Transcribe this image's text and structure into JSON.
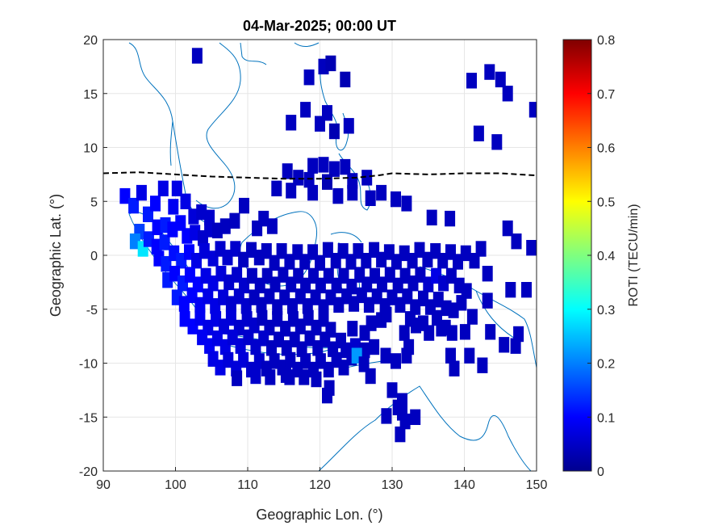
{
  "chart_data": {
    "type": "heatmap",
    "title": "04-Mar-2025; 00:00 UT",
    "xlabel": "Geographic Lon. (°)",
    "ylabel": "Geographic Lat. (°)",
    "xlim": [
      90,
      150
    ],
    "ylim": [
      -20,
      20
    ],
    "xticks": [
      "90",
      "100",
      "110",
      "120",
      "130",
      "140",
      "150"
    ],
    "yticks": [
      "-20",
      "-15",
      "-10",
      "-5",
      "0",
      "5",
      "10",
      "15",
      "20"
    ],
    "grid": true,
    "colorbar": {
      "label": "ROTI (TECU/min)",
      "range": [
        0,
        0.8
      ],
      "ticks": [
        "0",
        "0.1",
        "0.2",
        "0.3",
        "0.4",
        "0.5",
        "0.6",
        "0.7",
        "0.8"
      ],
      "colormap": "jet"
    },
    "magnetic_equator": {
      "style": "dashed",
      "color": "#000000",
      "points": [
        [
          90,
          7.6
        ],
        [
          95,
          7.7
        ],
        [
          100,
          7.5
        ],
        [
          105,
          7.3
        ],
        [
          110,
          7.2
        ],
        [
          115,
          7.1
        ],
        [
          120,
          7.1
        ],
        [
          125,
          7.2
        ],
        [
          128,
          7.4
        ],
        [
          130,
          7.6
        ],
        [
          135,
          7.5
        ],
        [
          140,
          7.6
        ],
        [
          145,
          7.6
        ],
        [
          150,
          7.4
        ]
      ]
    },
    "cells": [
      [
        103,
        18.5,
        0.05
      ],
      [
        120.5,
        17.5,
        0.05
      ],
      [
        121.5,
        17.8,
        0.04
      ],
      [
        118.5,
        16.5,
        0.05
      ],
      [
        123.5,
        16.3,
        0.04
      ],
      [
        141,
        16.2,
        0.05
      ],
      [
        143.5,
        17,
        0.05
      ],
      [
        145,
        16.3,
        0.05
      ],
      [
        146,
        15,
        0.05
      ],
      [
        118,
        13.5,
        0.05
      ],
      [
        121,
        13.2,
        0.05
      ],
      [
        116,
        12.3,
        0.05
      ],
      [
        120,
        12.2,
        0.05
      ],
      [
        122,
        11.5,
        0.04
      ],
      [
        124,
        12,
        0.05
      ],
      [
        142,
        11.3,
        0.05
      ],
      [
        144.5,
        10.5,
        0.05
      ],
      [
        149.7,
        13.5,
        0.05
      ],
      [
        119,
        8.3,
        0.05
      ],
      [
        120.5,
        8.4,
        0.05
      ],
      [
        122,
        8,
        0.05
      ],
      [
        123.5,
        8.2,
        0.05
      ],
      [
        115.5,
        7.8,
        0.05
      ],
      [
        117,
        7.2,
        0.05
      ],
      [
        118.5,
        7,
        0.05
      ],
      [
        121,
        6.8,
        0.04
      ],
      [
        124.5,
        6.9,
        0.05
      ],
      [
        126.5,
        7.2,
        0.05
      ],
      [
        114,
        6.2,
        0.05
      ],
      [
        116,
        6,
        0.05
      ],
      [
        119,
        5.8,
        0.05
      ],
      [
        122.5,
        5.5,
        0.05
      ],
      [
        124.5,
        5.8,
        0.05
      ],
      [
        127,
        5.3,
        0.05
      ],
      [
        128.5,
        5.8,
        0.05
      ],
      [
        130.5,
        5.2,
        0.05
      ],
      [
        132,
        4.8,
        0.05
      ],
      [
        135.5,
        3.5,
        0.05
      ],
      [
        138,
        3.4,
        0.05
      ],
      [
        146,
        2.5,
        0.05
      ],
      [
        93,
        5.5,
        0.1
      ],
      [
        94.2,
        4.6,
        0.12
      ],
      [
        95.3,
        5.8,
        0.08
      ],
      [
        96.2,
        3.8,
        0.12
      ],
      [
        97.2,
        4.8,
        0.1
      ],
      [
        98.3,
        6.2,
        0.08
      ],
      [
        95,
        2.2,
        0.15
      ],
      [
        94.4,
        1.3,
        0.2
      ],
      [
        95.5,
        0.6,
        0.28
      ],
      [
        96.3,
        1.5,
        0.12
      ],
      [
        97.5,
        2.6,
        0.1
      ],
      [
        98.6,
        2.8,
        0.12
      ],
      [
        99.7,
        4.5,
        0.09
      ],
      [
        100.2,
        6.2,
        0.08
      ],
      [
        101.4,
        5,
        0.08
      ],
      [
        102.5,
        3.6,
        0.07
      ],
      [
        103.6,
        4,
        0.06
      ],
      [
        104.7,
        3.5,
        0.06
      ],
      [
        97.4,
        0.8,
        0.1
      ],
      [
        98.5,
        1.2,
        0.12
      ],
      [
        99.6,
        2.4,
        0.1
      ],
      [
        100.7,
        3,
        0.1
      ],
      [
        101.6,
        1.8,
        0.1
      ],
      [
        102.7,
        2.1,
        0.08
      ],
      [
        103.8,
        1.6,
        0.06
      ],
      [
        104.7,
        2.4,
        0.06
      ],
      [
        105.8,
        2.3,
        0.05
      ],
      [
        106.9,
        2.7,
        0.05
      ],
      [
        108.2,
        3.2,
        0.05
      ],
      [
        109.5,
        4.6,
        0.05
      ],
      [
        111.3,
        2.5,
        0.05
      ],
      [
        112.2,
        3.4,
        0.05
      ],
      [
        113.4,
        2.7,
        0.05
      ],
      [
        97.7,
        -0.3,
        0.1
      ],
      [
        98.7,
        -0.8,
        0.12
      ],
      [
        99.8,
        0.2,
        0.11
      ],
      [
        100.8,
        -0.5,
        0.12
      ],
      [
        101.9,
        0.3,
        0.1
      ],
      [
        102.9,
        -0.5,
        0.08
      ],
      [
        104,
        0.4,
        0.07
      ],
      [
        105.2,
        -0.3,
        0.07
      ],
      [
        106.2,
        0.6,
        0.06
      ],
      [
        107.2,
        -0.2,
        0.06
      ],
      [
        108.3,
        0.6,
        0.06
      ],
      [
        109.4,
        -0.4,
        0.05
      ],
      [
        110.5,
        0.5,
        0.05
      ],
      [
        111.6,
        -0.2,
        0.05
      ],
      [
        112.6,
        0.4,
        0.05
      ],
      [
        113.7,
        -0.7,
        0.05
      ],
      [
        114.7,
        0.4,
        0.05
      ],
      [
        115.8,
        -0.6,
        0.05
      ],
      [
        116.9,
        0.3,
        0.05
      ],
      [
        117.9,
        -0.6,
        0.05
      ],
      [
        119,
        0.3,
        0.05
      ],
      [
        120,
        -0.7,
        0.05
      ],
      [
        121.1,
        0.5,
        0.05
      ],
      [
        122.2,
        -0.5,
        0.05
      ],
      [
        123.2,
        0.4,
        0.05
      ],
      [
        124.3,
        -0.6,
        0.05
      ],
      [
        125.3,
        0.4,
        0.05
      ],
      [
        126.4,
        -0.5,
        0.05
      ],
      [
        127.5,
        0.5,
        0.05
      ],
      [
        128.5,
        -0.4,
        0.05
      ],
      [
        129.6,
        0.3,
        0.05
      ],
      [
        130.6,
        -0.6,
        0.05
      ],
      [
        131.7,
        0.2,
        0.05
      ],
      [
        132.8,
        -0.5,
        0.05
      ],
      [
        133.8,
        0.5,
        0.05
      ],
      [
        134.9,
        -0.4,
        0.05
      ],
      [
        136,
        0.4,
        0.05
      ],
      [
        137,
        -0.5,
        0.05
      ],
      [
        138.1,
        0.3,
        0.05
      ],
      [
        139.1,
        -0.6,
        0.05
      ],
      [
        140.2,
        0.2,
        0.05
      ],
      [
        141.4,
        -0.5,
        0.05
      ],
      [
        142.3,
        0.6,
        0.05
      ],
      [
        147.2,
        1.3,
        0.05
      ],
      [
        149.3,
        0.7,
        0.05
      ],
      [
        143.2,
        -1.7,
        0.05
      ],
      [
        146.4,
        -3.2,
        0.05
      ],
      [
        148.6,
        -3.2,
        0.05
      ],
      [
        98.9,
        -2.3,
        0.12
      ],
      [
        99.9,
        -1.7,
        0.1
      ],
      [
        101,
        -2.6,
        0.12
      ],
      [
        102,
        -1.8,
        0.1
      ],
      [
        103.1,
        -2.7,
        0.1
      ],
      [
        104.2,
        -1.9,
        0.08
      ],
      [
        105.2,
        -2.6,
        0.08
      ],
      [
        106.3,
        -1.7,
        0.07
      ],
      [
        107.4,
        -2.5,
        0.06
      ],
      [
        108.5,
        -1.8,
        0.06
      ],
      [
        109.5,
        -2.8,
        0.06
      ],
      [
        110.6,
        -1.9,
        0.05
      ],
      [
        111.7,
        -2.8,
        0.05
      ],
      [
        112.7,
        -1.9,
        0.05
      ],
      [
        113.8,
        -2.7,
        0.05
      ],
      [
        114.9,
        -1.8,
        0.05
      ],
      [
        116,
        -2.7,
        0.05
      ],
      [
        117,
        -1.9,
        0.05
      ],
      [
        118,
        -2.8,
        0.05
      ],
      [
        119.1,
        -1.9,
        0.05
      ],
      [
        120.1,
        -2.8,
        0.05
      ],
      [
        121.2,
        -1.9,
        0.05
      ],
      [
        122.3,
        -2.8,
        0.05
      ],
      [
        123.3,
        -1.9,
        0.05
      ],
      [
        124.4,
        -2.9,
        0.05
      ],
      [
        125.5,
        -1.8,
        0.05
      ],
      [
        126.5,
        -2.7,
        0.05
      ],
      [
        127.6,
        -1.9,
        0.05
      ],
      [
        128.6,
        -2.7,
        0.05
      ],
      [
        129.7,
        -1.8,
        0.05
      ],
      [
        130.8,
        -2.8,
        0.05
      ],
      [
        131.8,
        -1.9,
        0.05
      ],
      [
        132.9,
        -2.6,
        0.05
      ],
      [
        133.9,
        -1.8,
        0.05
      ],
      [
        135,
        -2.7,
        0.06
      ],
      [
        136.1,
        -1.9,
        0.08
      ],
      [
        137.1,
        -2.6,
        0.06
      ],
      [
        138.2,
        -1.9,
        0.05
      ],
      [
        139.3,
        -2.8,
        0.05
      ],
      [
        140.3,
        -3.3,
        0.05
      ],
      [
        100.2,
        -3.9,
        0.12
      ],
      [
        101.2,
        -4.5,
        0.1
      ],
      [
        102.3,
        -3.7,
        0.1
      ],
      [
        103.4,
        -4.6,
        0.09
      ],
      [
        104.5,
        -3.8,
        0.08
      ],
      [
        105.5,
        -4.7,
        0.08
      ],
      [
        106.6,
        -3.9,
        0.07
      ],
      [
        107.7,
        -4.5,
        0.06
      ],
      [
        108.8,
        -3.8,
        0.06
      ],
      [
        109.8,
        -4.7,
        0.06
      ],
      [
        110.9,
        -3.9,
        0.05
      ],
      [
        111.9,
        -4.6,
        0.05
      ],
      [
        113,
        -3.8,
        0.05
      ],
      [
        114.1,
        -4.8,
        0.05
      ],
      [
        115.1,
        -3.9,
        0.05
      ],
      [
        116.2,
        -4.7,
        0.05
      ],
      [
        117.3,
        -3.8,
        0.05
      ],
      [
        118.3,
        -4.7,
        0.05
      ],
      [
        119.4,
        -3.9,
        0.05
      ],
      [
        120.5,
        -4.8,
        0.05
      ],
      [
        121.5,
        -3.9,
        0.05
      ],
      [
        122.6,
        -4.6,
        0.05
      ],
      [
        123.7,
        -3.8,
        0.05
      ],
      [
        124.7,
        -4.5,
        0.05
      ],
      [
        125.8,
        -3.7,
        0.05
      ],
      [
        126.8,
        -4.6,
        0.05
      ],
      [
        127.9,
        -3.8,
        0.05
      ],
      [
        129,
        -4.7,
        0.05
      ],
      [
        130,
        -3.9,
        0.05
      ],
      [
        131.1,
        -4.6,
        0.05
      ],
      [
        132.1,
        -3.8,
        0.05
      ],
      [
        133.2,
        -4.8,
        0.05
      ],
      [
        134.3,
        -4,
        0.05
      ],
      [
        135.3,
        -4.8,
        0.05
      ],
      [
        136.4,
        -4.1,
        0.05
      ],
      [
        137.5,
        -4.9,
        0.05
      ],
      [
        138.5,
        -5.1,
        0.05
      ],
      [
        139.6,
        -4.4,
        0.05
      ],
      [
        101.3,
        -5.9,
        0.1
      ],
      [
        102.4,
        -6.6,
        0.1
      ],
      [
        103.4,
        -5.8,
        0.09
      ],
      [
        104.5,
        -6.7,
        0.08
      ],
      [
        105.6,
        -5.9,
        0.08
      ],
      [
        106.7,
        -6.6,
        0.07
      ],
      [
        107.7,
        -5.8,
        0.07
      ],
      [
        108.8,
        -6.7,
        0.06
      ],
      [
        109.9,
        -5.9,
        0.06
      ],
      [
        110.9,
        -6.5,
        0.06
      ],
      [
        112,
        -5.8,
        0.05
      ],
      [
        113,
        -6.7,
        0.05
      ],
      [
        114.1,
        -5.9,
        0.05
      ],
      [
        115.2,
        -6.8,
        0.05
      ],
      [
        116.3,
        -5.9,
        0.05
      ],
      [
        117.3,
        -6.6,
        0.05
      ],
      [
        118.4,
        -5.8,
        0.05
      ],
      [
        119.5,
        -6.7,
        0.05
      ],
      [
        120.5,
        -5.9,
        0.05
      ],
      [
        121.5,
        -6.9,
        0.05
      ],
      [
        124.5,
        -6.8,
        0.05
      ],
      [
        126.2,
        -7.2,
        0.05
      ],
      [
        127.1,
        -6.3,
        0.05
      ],
      [
        128.5,
        -6,
        0.05
      ],
      [
        129.2,
        -5.5,
        0.05
      ],
      [
        132.5,
        -5.9,
        0.05
      ],
      [
        134.3,
        -6.3,
        0.05
      ],
      [
        136.2,
        -5.8,
        0.05
      ],
      [
        137.4,
        -6.7,
        0.05
      ],
      [
        103.7,
        -7.6,
        0.09
      ],
      [
        104.7,
        -8.4,
        0.09
      ],
      [
        105.8,
        -7.7,
        0.08
      ],
      [
        106.9,
        -8.5,
        0.08
      ],
      [
        107.9,
        -7.6,
        0.07
      ],
      [
        109,
        -8.4,
        0.07
      ],
      [
        110.1,
        -7.6,
        0.06
      ],
      [
        111.1,
        -8.5,
        0.06
      ],
      [
        112.2,
        -7.7,
        0.06
      ],
      [
        113.3,
        -8.6,
        0.05
      ],
      [
        114.3,
        -7.8,
        0.05
      ],
      [
        115.4,
        -8.6,
        0.05
      ],
      [
        116.5,
        -7.8,
        0.05
      ],
      [
        117.5,
        -8.7,
        0.05
      ],
      [
        118.6,
        -7.7,
        0.05
      ],
      [
        119.7,
        -8.6,
        0.05
      ],
      [
        120.7,
        -7.8,
        0.05
      ],
      [
        121.8,
        -8.7,
        0.05
      ],
      [
        122.9,
        -7.9,
        0.05
      ],
      [
        123.6,
        -8.8,
        0.05
      ],
      [
        124.9,
        -8.4,
        0.06
      ],
      [
        126.2,
        -8.8,
        0.05
      ],
      [
        131.7,
        -7.2,
        0.05
      ],
      [
        133.3,
        -6.5,
        0.05
      ],
      [
        135.1,
        -7.2,
        0.05
      ],
      [
        136.8,
        -6.8,
        0.05
      ],
      [
        138.3,
        -7.2,
        0.05
      ],
      [
        140.1,
        -7.1,
        0.05
      ],
      [
        143.6,
        -7.1,
        0.05
      ],
      [
        147.5,
        -7.3,
        0.05
      ],
      [
        105.2,
        -9.6,
        0.08
      ],
      [
        106.2,
        -10.4,
        0.08
      ],
      [
        107.3,
        -9.7,
        0.07
      ],
      [
        108.4,
        -10.5,
        0.07
      ],
      [
        109.4,
        -9.7,
        0.07
      ],
      [
        110.5,
        -10.6,
        0.06
      ],
      [
        111.6,
        -9.8,
        0.06
      ],
      [
        112.6,
        -10.5,
        0.05
      ],
      [
        113.7,
        -9.8,
        0.05
      ],
      [
        114.8,
        -10.4,
        0.05
      ],
      [
        115.9,
        -9.7,
        0.05
      ],
      [
        116.9,
        -10.6,
        0.05
      ],
      [
        118,
        -9.8,
        0.05
      ],
      [
        119.1,
        -10.6,
        0.05
      ],
      [
        120.1,
        -9.8,
        0.05
      ],
      [
        121.2,
        -10.6,
        0.05
      ],
      [
        122.3,
        -9.7,
        0.05
      ],
      [
        123.3,
        -10.4,
        0.05
      ],
      [
        124.4,
        -9.5,
        0.05
      ],
      [
        125.1,
        -9.3,
        0.22
      ],
      [
        126.1,
        -10.1,
        0.05
      ],
      [
        117.8,
        -11.3,
        0.05
      ],
      [
        119.5,
        -11.5,
        0.05
      ],
      [
        121.3,
        -12.3,
        0.05
      ],
      [
        121,
        -13,
        0.05
      ],
      [
        127.5,
        -8.5,
        0.05
      ],
      [
        129.1,
        -9.3,
        0.05
      ],
      [
        130.5,
        -9.8,
        0.05
      ],
      [
        132.3,
        -8.5,
        0.05
      ],
      [
        132,
        -9.3,
        0.05
      ],
      [
        138.1,
        -9.3,
        0.05
      ],
      [
        142.5,
        -10.2,
        0.05
      ],
      [
        108.5,
        -11.4,
        0.05
      ],
      [
        111.1,
        -11.2,
        0.06
      ],
      [
        113.1,
        -11.3,
        0.05
      ],
      [
        115.3,
        -11.1,
        0.05
      ],
      [
        115.8,
        -11.3,
        0.05
      ],
      [
        127,
        -11.2,
        0.05
      ],
      [
        130,
        -12.5,
        0.05
      ],
      [
        131.4,
        -13.5,
        0.05
      ],
      [
        130.8,
        -14.1,
        0.05
      ],
      [
        129.2,
        -14.9,
        0.05
      ],
      [
        131.4,
        -14.6,
        0.05
      ],
      [
        133.2,
        -15,
        0.05
      ],
      [
        131.8,
        -15.4,
        0.05
      ],
      [
        131.1,
        -16.6,
        0.05
      ],
      [
        138.6,
        -10.5,
        0.05
      ],
      [
        140.7,
        -9.3,
        0.05
      ],
      [
        145.5,
        -8.3,
        0.05
      ],
      [
        147.1,
        -8.4,
        0.05
      ],
      [
        141.1,
        -5.7,
        0.05
      ],
      [
        143.2,
        -4.2,
        0.05
      ]
    ]
  }
}
